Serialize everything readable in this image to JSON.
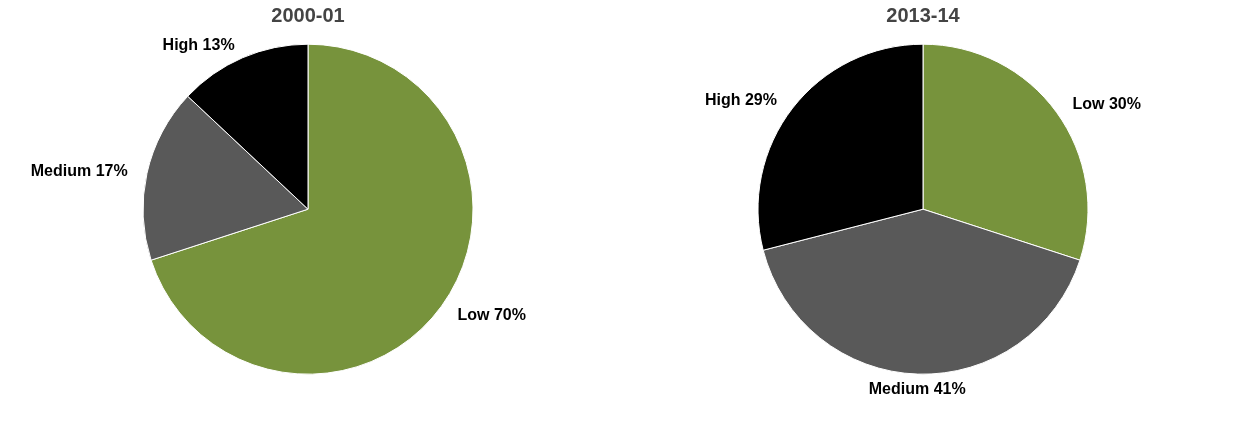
{
  "chart_data": [
    {
      "type": "pie",
      "title": "2000-01",
      "categories": [
        "Low",
        "Medium",
        "High"
      ],
      "values": [
        70,
        17,
        13
      ],
      "value_labels": [
        "70%",
        "17%",
        "13%"
      ],
      "colors": [
        "#77933c",
        "#595959",
        "#000000"
      ],
      "legend": false
    },
    {
      "type": "pie",
      "title": "2013-14",
      "categories": [
        "Low",
        "Medium",
        "High"
      ],
      "values": [
        30,
        41,
        29
      ],
      "value_labels": [
        "30%",
        "41%",
        "29%"
      ],
      "colors": [
        "#77933c",
        "#595959",
        "#000000"
      ],
      "legend": false
    }
  ]
}
